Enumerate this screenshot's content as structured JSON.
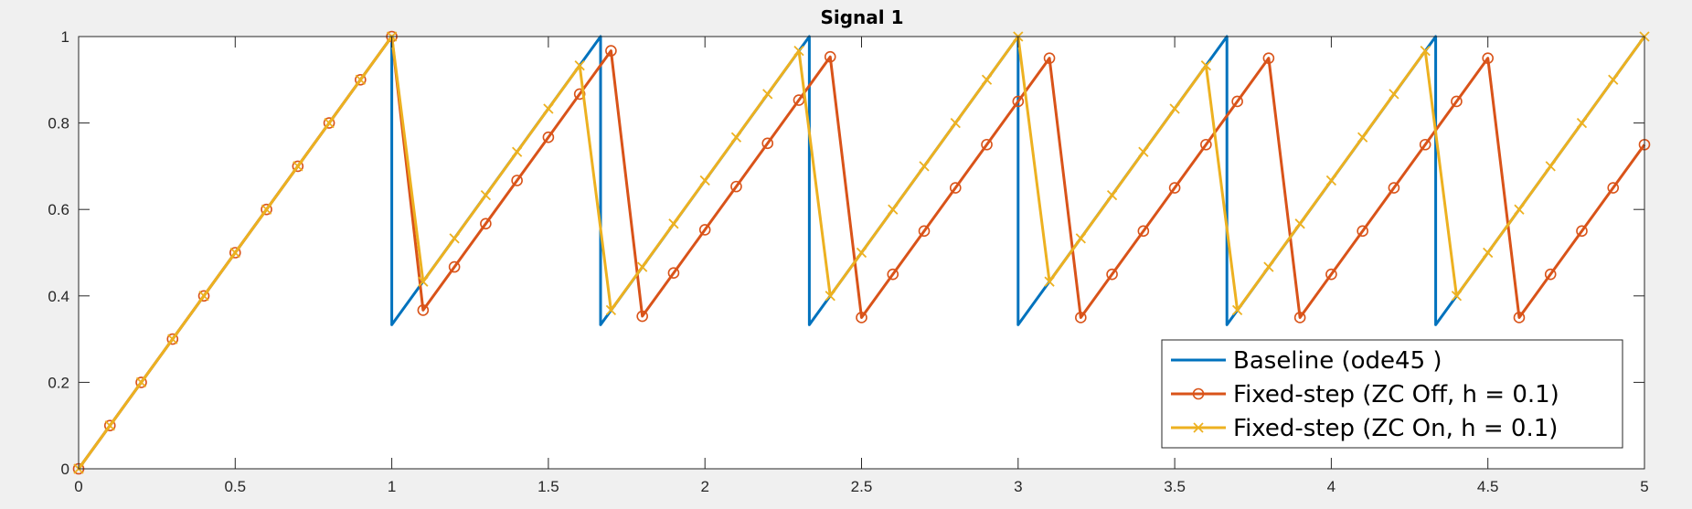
{
  "chart_data": {
    "type": "line",
    "title": "Signal 1",
    "xlabel": "",
    "ylabel": "",
    "xlim": [
      0,
      5
    ],
    "ylim": [
      0,
      1
    ],
    "grid": false,
    "legend_position": "bottom-right",
    "x_ticks": [
      0,
      0.5,
      1,
      1.5,
      2,
      2.5,
      3,
      3.5,
      4,
      4.5,
      5
    ],
    "x_tick_labels": [
      "0",
      "0.5",
      "1",
      "1.5",
      "2",
      "2.5",
      "3",
      "3.5",
      "4",
      "4.5",
      "5"
    ],
    "y_ticks": [
      0,
      0.2,
      0.4,
      0.6,
      0.8,
      1
    ],
    "y_tick_labels": [
      "0",
      "0.2",
      "0.4",
      "0.6",
      "0.8",
      "1"
    ],
    "series": [
      {
        "name": "Baseline (ode45 )",
        "color": "#0072bd",
        "marker": "none",
        "x": [
          0,
          1,
          1,
          1.6667,
          1.6667,
          2.3333,
          2.3333,
          3,
          3,
          3.6667,
          3.6667,
          4.3333,
          4.3333,
          5
        ],
        "y": [
          0,
          1,
          0.3333,
          1,
          0.3333,
          1,
          0.3333,
          1,
          0.3333,
          1,
          0.3333,
          1,
          0.3333,
          1
        ]
      },
      {
        "name": "Fixed-step (ZC Off, h = 0.1)",
        "color": "#d95319",
        "marker": "circle",
        "x": [
          0,
          0.1,
          0.2,
          0.3,
          0.4,
          0.5,
          0.6,
          0.7,
          0.8,
          0.9,
          1.0,
          1.1,
          1.2,
          1.3,
          1.4,
          1.5,
          1.6,
          1.7,
          1.8,
          1.9,
          2.0,
          2.1,
          2.2,
          2.3,
          2.4,
          2.5,
          2.6,
          2.7,
          2.8,
          2.9,
          3.0,
          3.1,
          3.2,
          3.3,
          3.4,
          3.5,
          3.6,
          3.7,
          3.8,
          3.9,
          4.0,
          4.1,
          4.2,
          4.3,
          4.4,
          4.5,
          4.6,
          4.7,
          4.8,
          4.9,
          5.0
        ],
        "y": [
          0,
          0.1,
          0.2,
          0.3,
          0.4,
          0.5,
          0.6,
          0.7,
          0.8,
          0.9,
          1.0,
          0.367,
          0.467,
          0.567,
          0.667,
          0.767,
          0.867,
          0.967,
          0.353,
          0.453,
          0.553,
          0.653,
          0.753,
          0.853,
          0.953,
          0.35,
          0.45,
          0.55,
          0.65,
          0.75,
          0.85,
          0.95,
          0.35,
          0.45,
          0.55,
          0.65,
          0.75,
          0.85,
          0.95,
          0.35,
          0.45,
          0.55,
          0.65,
          0.75,
          0.85,
          0.95,
          0.35,
          0.45,
          0.55,
          0.65,
          0.75
        ]
      },
      {
        "name": "Fixed-step (ZC On, h = 0.1)",
        "color": "#edb120",
        "marker": "x",
        "x": [
          0,
          0.1,
          0.2,
          0.3,
          0.4,
          0.5,
          0.6,
          0.7,
          0.8,
          0.9,
          1.0,
          1.1,
          1.2,
          1.3,
          1.4,
          1.5,
          1.6,
          1.7,
          1.8,
          1.9,
          2.0,
          2.1,
          2.2,
          2.3,
          2.4,
          2.5,
          2.6,
          2.7,
          2.8,
          2.9,
          3.0,
          3.1,
          3.2,
          3.3,
          3.4,
          3.5,
          3.6,
          3.7,
          3.8,
          3.9,
          4.0,
          4.1,
          4.2,
          4.3,
          4.4,
          4.5,
          4.6,
          4.7,
          4.8,
          4.9,
          5.0
        ],
        "y": [
          0,
          0.1,
          0.2,
          0.3,
          0.4,
          0.5,
          0.6,
          0.7,
          0.8,
          0.9,
          1.0,
          0.433,
          0.533,
          0.633,
          0.733,
          0.833,
          0.933,
          0.367,
          0.467,
          0.567,
          0.667,
          0.767,
          0.867,
          0.967,
          0.4,
          0.5,
          0.6,
          0.7,
          0.8,
          0.9,
          1.0,
          0.433,
          0.533,
          0.633,
          0.733,
          0.833,
          0.933,
          0.367,
          0.467,
          0.567,
          0.667,
          0.767,
          0.867,
          0.967,
          0.4,
          0.5,
          0.6,
          0.7,
          0.8,
          0.9,
          1.0
        ]
      }
    ]
  }
}
